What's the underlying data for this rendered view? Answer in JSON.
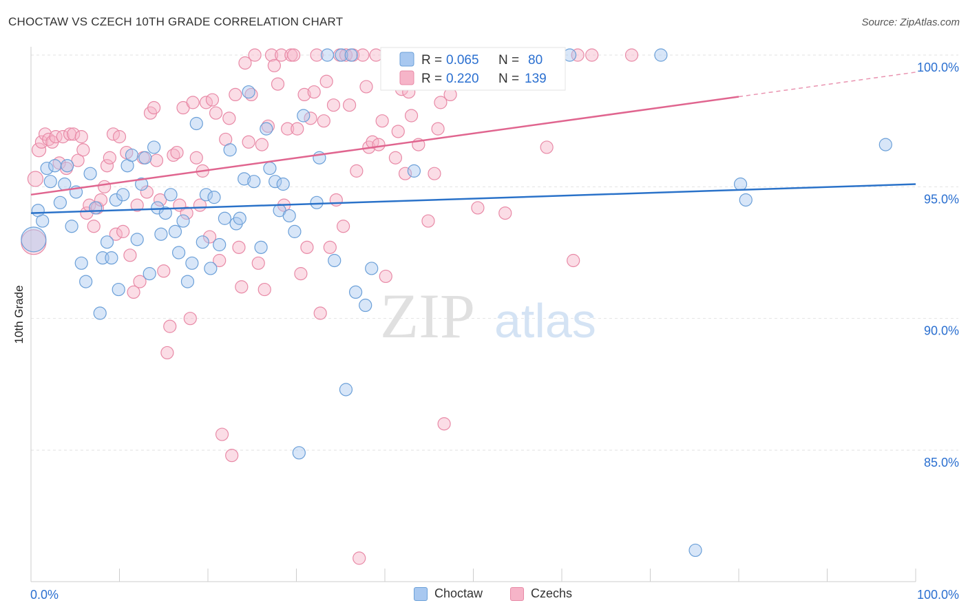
{
  "title": "CHOCTAW VS CZECH 10TH GRADE CORRELATION CHART",
  "source": "Source: ZipAtlas.com",
  "watermark": {
    "zip": "ZIP",
    "atlas": "atlas"
  },
  "colors": {
    "blue_fill": "#a8c8f0",
    "blue_stroke": "#6a9fd8",
    "blue_line": "#2a72c9",
    "pink_fill": "#f6b4c8",
    "pink_stroke": "#e889a6",
    "pink_line": "#e0658f",
    "value_text": "#2a6fd0",
    "grid": "#dddddd"
  },
  "legend_top": [
    {
      "r_label": "R = ",
      "r_value": "0.065",
      "n_label": "N = ",
      "n_value": "80",
      "series": "Choctaw"
    },
    {
      "r_label": "R = ",
      "r_value": "0.220",
      "n_label": "N = ",
      "n_value": "139",
      "series": "Czechs"
    }
  ],
  "chart_data": {
    "type": "scatter",
    "title": "CHOCTAW VS CZECH 10TH GRADE CORRELATION CHART",
    "xlabel": "",
    "ylabel": "10th Grade",
    "xlim": [
      0,
      100
    ],
    "ylim": [
      80.5,
      100.7
    ],
    "x_tick_labels": [
      "0.0%",
      "100.0%"
    ],
    "y_ticks": [
      85,
      90,
      95,
      100
    ],
    "y_tick_labels": [
      "85.0%",
      "90.0%",
      "95.0%",
      "100.0%"
    ],
    "grid": true,
    "legend_position": "top-center and bottom",
    "series": [
      {
        "name": "Choctaw",
        "color": "#a8c8f0",
        "trend": {
          "x": [
            0,
            100
          ],
          "y": [
            94.0,
            95.1
          ]
        },
        "points": [
          [
            0.3,
            93.0,
            18
          ],
          [
            0.8,
            94.1,
            9
          ],
          [
            1.3,
            93.7,
            9
          ],
          [
            1.8,
            95.7,
            9
          ],
          [
            2.2,
            95.2,
            9
          ],
          [
            2.7,
            95.8,
            9
          ],
          [
            3.3,
            94.4,
            9
          ],
          [
            3.8,
            95.1,
            9
          ],
          [
            4.1,
            95.8,
            9
          ],
          [
            4.6,
            93.5,
            9
          ],
          [
            5.1,
            94.8,
            9
          ],
          [
            5.7,
            92.1,
            9
          ],
          [
            6.2,
            91.4,
            9
          ],
          [
            6.7,
            95.5,
            9
          ],
          [
            7.3,
            94.2,
            9
          ],
          [
            7.8,
            90.2,
            9
          ],
          [
            8.1,
            92.3,
            9
          ],
          [
            8.6,
            92.9,
            9
          ],
          [
            9.1,
            92.3,
            9
          ],
          [
            9.6,
            94.5,
            9
          ],
          [
            9.9,
            91.1,
            9
          ],
          [
            10.4,
            94.7,
            9
          ],
          [
            10.9,
            95.8,
            9
          ],
          [
            11.4,
            96.2,
            9
          ],
          [
            12.0,
            93.0,
            9
          ],
          [
            12.5,
            95.1,
            9
          ],
          [
            12.9,
            96.1,
            9
          ],
          [
            13.4,
            91.7,
            9
          ],
          [
            13.9,
            96.5,
            9
          ],
          [
            14.3,
            94.2,
            9
          ],
          [
            14.7,
            93.2,
            9
          ],
          [
            15.2,
            94.0,
            9
          ],
          [
            15.8,
            94.7,
            9
          ],
          [
            16.3,
            93.3,
            9
          ],
          [
            16.7,
            92.5,
            9
          ],
          [
            17.2,
            93.7,
            9
          ],
          [
            17.7,
            91.4,
            9
          ],
          [
            18.2,
            92.1,
            9
          ],
          [
            18.7,
            97.4,
            9
          ],
          [
            19.4,
            92.9,
            9
          ],
          [
            19.8,
            94.7,
            9
          ],
          [
            20.3,
            91.9,
            9
          ],
          [
            20.7,
            94.6,
            9
          ],
          [
            21.3,
            92.8,
            9
          ],
          [
            21.9,
            93.8,
            9
          ],
          [
            22.5,
            96.4,
            9
          ],
          [
            23.2,
            93.6,
            9
          ],
          [
            23.6,
            93.8,
            9
          ],
          [
            24.1,
            95.3,
            9
          ],
          [
            24.6,
            98.6,
            9
          ],
          [
            25.2,
            95.2,
            9
          ],
          [
            26.0,
            92.7,
            9
          ],
          [
            26.6,
            97.2,
            9
          ],
          [
            27.0,
            95.7,
            9
          ],
          [
            27.6,
            95.2,
            9
          ],
          [
            28.1,
            94.1,
            9
          ],
          [
            28.5,
            95.1,
            9
          ],
          [
            29.2,
            93.9,
            9
          ],
          [
            29.8,
            93.3,
            9
          ],
          [
            30.3,
            84.9,
            9
          ],
          [
            30.8,
            97.7,
            9
          ],
          [
            32.3,
            94.4,
            9
          ],
          [
            32.6,
            96.1,
            9
          ],
          [
            33.5,
            100.0,
            9
          ],
          [
            34.3,
            92.2,
            9
          ],
          [
            35.1,
            100.0,
            9
          ],
          [
            35.6,
            87.3,
            9
          ],
          [
            36.2,
            100.0,
            9
          ],
          [
            36.7,
            91.0,
            9
          ],
          [
            37.8,
            90.5,
            9
          ],
          [
            38.5,
            91.9,
            9
          ],
          [
            43.3,
            95.6,
            9
          ],
          [
            52.9,
            100.0,
            9
          ],
          [
            58.1,
            100.0,
            9
          ],
          [
            60.9,
            100.0,
            9
          ],
          [
            71.2,
            100.0,
            9
          ],
          [
            75.1,
            81.2,
            9
          ],
          [
            80.2,
            95.1,
            9
          ],
          [
            80.8,
            94.5,
            9
          ],
          [
            96.6,
            96.6,
            9
          ]
        ]
      },
      {
        "name": "Czechs",
        "color": "#f6b4c8",
        "trend": {
          "x": [
            0,
            100
          ],
          "y": [
            94.7,
            99.35
          ],
          "solid_to_x": 80
        },
        "points": [
          [
            0.3,
            92.9,
            18
          ],
          [
            0.5,
            95.3,
            11
          ],
          [
            0.9,
            96.4,
            10
          ],
          [
            1.2,
            96.7,
            9
          ],
          [
            1.6,
            97.0,
            9
          ],
          [
            2.0,
            96.8,
            9
          ],
          [
            2.4,
            96.7,
            9
          ],
          [
            2.8,
            96.9,
            9
          ],
          [
            3.2,
            95.9,
            9
          ],
          [
            3.6,
            96.9,
            9
          ],
          [
            4.0,
            95.7,
            9
          ],
          [
            4.4,
            97.0,
            9
          ],
          [
            4.8,
            97.0,
            9
          ],
          [
            5.3,
            96.0,
            9
          ],
          [
            5.7,
            96.9,
            9
          ],
          [
            5.9,
            96.4,
            9
          ],
          [
            6.3,
            94.0,
            9
          ],
          [
            6.6,
            94.3,
            9
          ],
          [
            7.1,
            93.5,
            9
          ],
          [
            7.5,
            94.2,
            9
          ],
          [
            7.9,
            94.5,
            9
          ],
          [
            8.3,
            95.0,
            9
          ],
          [
            8.6,
            95.8,
            9
          ],
          [
            8.9,
            96.1,
            9
          ],
          [
            9.3,
            97.0,
            9
          ],
          [
            9.6,
            93.2,
            9
          ],
          [
            10.0,
            96.9,
            9
          ],
          [
            10.4,
            93.3,
            9
          ],
          [
            10.8,
            96.3,
            9
          ],
          [
            11.2,
            92.4,
            9
          ],
          [
            11.6,
            91.0,
            9
          ],
          [
            12.0,
            94.3,
            9
          ],
          [
            12.3,
            91.4,
            9
          ],
          [
            12.7,
            96.1,
            9
          ],
          [
            13.1,
            94.8,
            9
          ],
          [
            13.5,
            97.8,
            9
          ],
          [
            13.9,
            98.0,
            9
          ],
          [
            14.2,
            96.0,
            9
          ],
          [
            14.6,
            94.5,
            9
          ],
          [
            15.0,
            91.8,
            9
          ],
          [
            15.4,
            88.7,
            9
          ],
          [
            15.7,
            89.7,
            9
          ],
          [
            16.1,
            96.2,
            9
          ],
          [
            16.5,
            96.3,
            9
          ],
          [
            16.8,
            94.3,
            9
          ],
          [
            17.2,
            98.0,
            9
          ],
          [
            17.6,
            94.0,
            9
          ],
          [
            18.0,
            90.0,
            9
          ],
          [
            18.3,
            98.2,
            9
          ],
          [
            18.7,
            96.1,
            9
          ],
          [
            19.1,
            94.3,
            9
          ],
          [
            19.4,
            95.6,
            9
          ],
          [
            19.8,
            98.2,
            9
          ],
          [
            20.2,
            93.1,
            9
          ],
          [
            20.5,
            98.3,
            9
          ],
          [
            20.9,
            97.8,
            9
          ],
          [
            21.3,
            92.2,
            9
          ],
          [
            21.6,
            85.6,
            9
          ],
          [
            22.0,
            96.8,
            9
          ],
          [
            22.4,
            97.6,
            9
          ],
          [
            22.7,
            84.8,
            9
          ],
          [
            23.1,
            98.5,
            9
          ],
          [
            23.5,
            92.7,
            9
          ],
          [
            23.8,
            91.2,
            9
          ],
          [
            24.2,
            99.7,
            9
          ],
          [
            24.6,
            96.7,
            9
          ],
          [
            24.9,
            98.5,
            9
          ],
          [
            25.3,
            100.0,
            9
          ],
          [
            25.7,
            92.1,
            9
          ],
          [
            26.1,
            96.6,
            9
          ],
          [
            26.4,
            91.1,
            9
          ],
          [
            26.8,
            97.3,
            9
          ],
          [
            27.2,
            100.0,
            9
          ],
          [
            27.5,
            99.6,
            9
          ],
          [
            27.9,
            98.9,
            9
          ],
          [
            28.3,
            100.0,
            9
          ],
          [
            28.6,
            94.3,
            9
          ],
          [
            29.0,
            97.2,
            9
          ],
          [
            29.4,
            100.0,
            9
          ],
          [
            29.7,
            100.0,
            9
          ],
          [
            30.1,
            97.2,
            9
          ],
          [
            30.5,
            91.7,
            9
          ],
          [
            30.9,
            98.5,
            9
          ],
          [
            31.2,
            92.7,
            9
          ],
          [
            31.6,
            97.6,
            9
          ],
          [
            32.0,
            98.6,
            9
          ],
          [
            32.3,
            100.0,
            9
          ],
          [
            32.7,
            90.2,
            9
          ],
          [
            33.1,
            97.5,
            9
          ],
          [
            33.4,
            99.0,
            9
          ],
          [
            33.8,
            92.7,
            9
          ],
          [
            34.2,
            98.1,
            9
          ],
          [
            34.5,
            94.5,
            9
          ],
          [
            34.9,
            100.0,
            9
          ],
          [
            35.3,
            93.5,
            9
          ],
          [
            35.6,
            100.0,
            9
          ],
          [
            36.0,
            98.1,
            9
          ],
          [
            36.4,
            100.0,
            9
          ],
          [
            36.8,
            95.6,
            9
          ],
          [
            37.1,
            80.9,
            9
          ],
          [
            37.5,
            100.0,
            9
          ],
          [
            37.9,
            98.8,
            9
          ],
          [
            38.2,
            96.5,
            9
          ],
          [
            38.6,
            96.7,
            9
          ],
          [
            39.0,
            100.0,
            9
          ],
          [
            39.3,
            96.6,
            9
          ],
          [
            39.7,
            97.5,
            9
          ],
          [
            40.1,
            91.6,
            9
          ],
          [
            40.4,
            99.0,
            9
          ],
          [
            40.8,
            100.0,
            9
          ],
          [
            41.2,
            96.1,
            9
          ],
          [
            41.5,
            97.1,
            9
          ],
          [
            41.9,
            98.7,
            9
          ],
          [
            42.3,
            95.5,
            9
          ],
          [
            42.7,
            98.6,
            9
          ],
          [
            43.0,
            97.7,
            9
          ],
          [
            43.4,
            100.0,
            9
          ],
          [
            43.8,
            96.6,
            9
          ],
          [
            44.1,
            99.4,
            9
          ],
          [
            44.5,
            100.0,
            9
          ],
          [
            44.9,
            93.7,
            9
          ],
          [
            45.2,
            100.0,
            9
          ],
          [
            45.6,
            95.5,
            9
          ],
          [
            46.0,
            97.2,
            9
          ],
          [
            46.3,
            98.2,
            9
          ],
          [
            46.7,
            86.0,
            9
          ],
          [
            47.1,
            99.4,
            9
          ],
          [
            47.4,
            98.5,
            9
          ],
          [
            49.0,
            100.0,
            9
          ],
          [
            50.5,
            94.2,
            9
          ],
          [
            52.1,
            100.0,
            9
          ],
          [
            53.6,
            94.0,
            9
          ],
          [
            55.2,
            100.0,
            9
          ],
          [
            56.7,
            99.2,
            9
          ],
          [
            58.3,
            96.5,
            9
          ],
          [
            61.3,
            92.2,
            9
          ],
          [
            61.8,
            100.0,
            9
          ],
          [
            63.4,
            100.0,
            9
          ],
          [
            67.9,
            100.0,
            9
          ]
        ]
      }
    ]
  }
}
